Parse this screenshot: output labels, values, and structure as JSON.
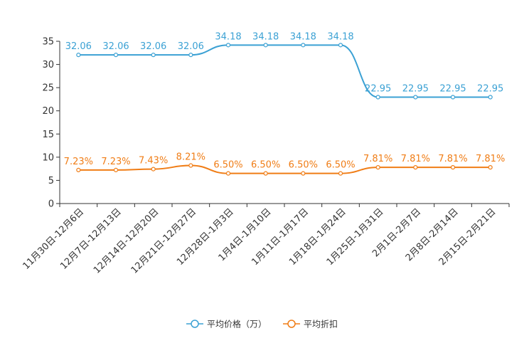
{
  "chart_data": {
    "type": "line",
    "categories": [
      "11月30日-12月6日",
      "12月7日-12月13日",
      "12月14日-12月20日",
      "12月21日-12月27日",
      "12月28日-1月3日",
      "1月4日-1月10日",
      "1月11日-1月17日",
      "1月18日-1月24日",
      "1月25日-1月31日",
      "2月1日-2月7日",
      "2月8日-2月14日",
      "2月15日-2月21日"
    ],
    "series": [
      {
        "name": "平均价格（万）",
        "color": "#3ba1d4",
        "values": [
          32.06,
          32.06,
          32.06,
          32.06,
          34.18,
          34.18,
          34.18,
          34.18,
          22.95,
          22.95,
          22.95,
          22.95
        ],
        "labels": [
          "32.06",
          "32.06",
          "32.06",
          "32.06",
          "34.18",
          "34.18",
          "34.18",
          "34.18",
          "22.95",
          "22.95",
          "22.95",
          "22.95"
        ]
      },
      {
        "name": "平均折扣",
        "color": "#f07d16",
        "values": [
          7.23,
          7.23,
          7.43,
          8.21,
          6.5,
          6.5,
          6.5,
          6.5,
          7.81,
          7.81,
          7.81,
          7.81
        ],
        "labels": [
          "7.23%",
          "7.23%",
          "7.43%",
          "8.21%",
          "6.50%",
          "6.50%",
          "6.50%",
          "6.50%",
          "7.81%",
          "7.81%",
          "7.81%",
          "7.81%"
        ]
      }
    ],
    "yticks": [
      "0",
      "5",
      "10",
      "15",
      "20",
      "25",
      "30",
      "35"
    ],
    "ylim": [
      0,
      35
    ],
    "title": "",
    "xlabel": "",
    "ylabel": "",
    "grid": false,
    "legend_position": "bottom-center"
  }
}
